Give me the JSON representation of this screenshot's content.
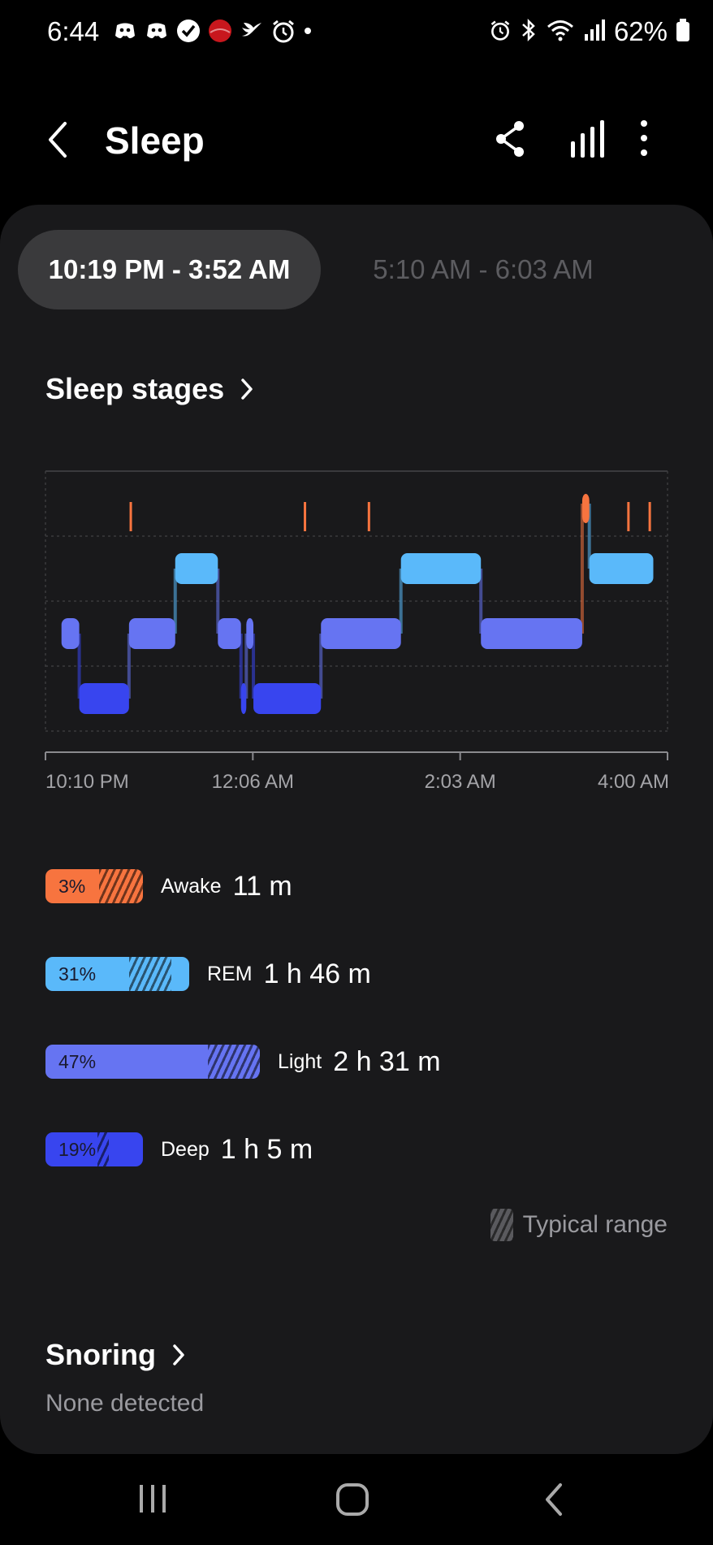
{
  "status_bar": {
    "time": "6:44",
    "battery": "62%",
    "left_icons": [
      "discord-icon",
      "discord-icon",
      "check-badge-icon",
      "red-circle-icon",
      "bird-icon",
      "alarm-icon"
    ],
    "right_icons": [
      "alarm-icon",
      "bluetooth-icon",
      "wifi-icon",
      "signal-icon",
      "battery-icon"
    ]
  },
  "header": {
    "title": "Sleep",
    "icons": [
      "back-icon",
      "share-icon",
      "bar-chart-icon",
      "more-vert-icon"
    ]
  },
  "sessions": [
    {
      "label": "10:19 PM - 3:52 AM",
      "selected": true
    },
    {
      "label": "5:10 AM - 6:03 AM",
      "selected": false
    }
  ],
  "sleep_stages": {
    "title": "Sleep stages",
    "x_ticks": [
      "10:10 PM",
      "12:06 AM",
      "2:03 AM",
      "4:00 AM"
    ],
    "colors": {
      "awake": "#f7743f",
      "rem": "#5ab9fa",
      "light": "#6674f2",
      "deep": "#3845ef"
    }
  },
  "chart_data": {
    "type": "area",
    "title": "",
    "xlabel": "",
    "ylabel": "",
    "x_range": [
      "10:10 PM",
      "4:00 AM"
    ],
    "x_ticks": [
      "10:10 PM",
      "12:06 AM",
      "2:03 AM",
      "4:00 AM"
    ],
    "levels": [
      "Awake",
      "REM",
      "Light",
      "Deep"
    ],
    "segments": [
      {
        "stage": "Light",
        "start": "10:19 PM",
        "end": "10:29 PM"
      },
      {
        "stage": "Deep",
        "start": "10:29 PM",
        "end": "10:57 PM"
      },
      {
        "stage": "Light",
        "start": "10:57 PM",
        "end": "11:23 PM"
      },
      {
        "stage": "REM",
        "start": "11:23 PM",
        "end": "11:47 PM"
      },
      {
        "stage": "Light",
        "start": "11:47 PM",
        "end": "12:00 AM"
      },
      {
        "stage": "Deep",
        "start": "12:00 AM",
        "end": "12:03 AM"
      },
      {
        "stage": "Light",
        "start": "12:03 AM",
        "end": "12:07 AM"
      },
      {
        "stage": "Deep",
        "start": "12:07 AM",
        "end": "12:45 AM"
      },
      {
        "stage": "Light",
        "start": "12:45 AM",
        "end": "1:30 AM"
      },
      {
        "stage": "REM",
        "start": "1:30 AM",
        "end": "2:15 AM"
      },
      {
        "stage": "Light",
        "start": "2:15 AM",
        "end": "3:12 AM"
      },
      {
        "stage": "Awake",
        "start": "3:12 AM",
        "end": "3:16 AM"
      },
      {
        "stage": "REM",
        "start": "3:16 AM",
        "end": "3:52 AM"
      }
    ],
    "awake_ticks": [
      "10:58 PM",
      "12:36 AM",
      "1:12 AM",
      "3:38 AM",
      "3:50 AM"
    ]
  },
  "stage_summary": [
    {
      "key": "awake",
      "percent": "3%",
      "label": "Awake",
      "duration": "11 m",
      "fraction": 0.03,
      "color": "#f7743f",
      "typical": [
        0.03,
        0.11
      ]
    },
    {
      "key": "rem",
      "percent": "31%",
      "label": "REM",
      "duration": "1 h 46 m",
      "fraction": 0.31,
      "color": "#5ab9fa",
      "typical": [
        0.19,
        0.24
      ]
    },
    {
      "key": "light",
      "percent": "47%",
      "label": "Light",
      "duration": "2 h 31 m",
      "fraction": 0.47,
      "color": "#6674f2",
      "typical": [
        0.37,
        0.46
      ]
    },
    {
      "key": "deep",
      "percent": "19%",
      "label": "Deep",
      "duration": "1 h 5 m",
      "fraction": 0.19,
      "color": "#3845ef",
      "typical": [
        0.14,
        0.19
      ]
    }
  ],
  "typical_range_label": "Typical range",
  "snoring": {
    "title": "Snoring",
    "status": "None detected"
  },
  "nav_bar": [
    "recents-icon",
    "home-icon",
    "back-icon"
  ]
}
